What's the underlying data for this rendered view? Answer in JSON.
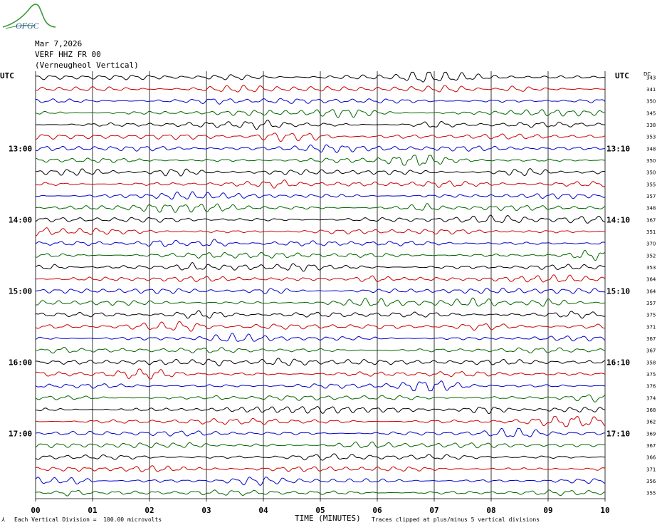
{
  "logo": {
    "text": "OFGC"
  },
  "header": {
    "date": "Mar 7,2026",
    "station": "VERF HHZ FR 00",
    "location": "(Verneugheol Vertical)"
  },
  "axis": {
    "left_label": "UTC",
    "right_label": "UTC",
    "dc_label": "DC",
    "xlabel": "TIME (MINUTES)"
  },
  "footer": {
    "mark": "⅄",
    "scale_note": "Each Vertical Division =  100.00 microvolts",
    "clip_note": "Traces clipped at plus/minus 5 vertical divisions"
  },
  "colors": {
    "cycle": [
      "#000000",
      "#cc0000",
      "#0000cc",
      "#006600"
    ],
    "grid": "#000000"
  },
  "chart_data": {
    "type": "line",
    "title": "",
    "xlabel": "TIME (MINUTES)",
    "xlim": [
      0,
      10
    ],
    "x_ticks": [
      "00",
      "01",
      "02",
      "03",
      "04",
      "05",
      "06",
      "07",
      "08",
      "09",
      "10"
    ],
    "rows": 36,
    "left_time_labels": [
      {
        "row": 6,
        "label": "13:00"
      },
      {
        "row": 12,
        "label": "14:00"
      },
      {
        "row": 18,
        "label": "15:00"
      },
      {
        "row": 24,
        "label": "16:00"
      },
      {
        "row": 30,
        "label": "17:00"
      }
    ],
    "right_time_labels": [
      {
        "row": 6,
        "label": "13:10"
      },
      {
        "row": 12,
        "label": "14:10"
      },
      {
        "row": 18,
        "label": "15:10"
      },
      {
        "row": 24,
        "label": "16:10"
      },
      {
        "row": 30,
        "label": "17:10"
      }
    ],
    "dc_offsets": [
      343,
      341,
      350,
      345,
      338,
      353,
      348,
      350,
      350,
      355,
      357,
      348,
      367,
      351,
      370,
      352,
      353,
      364,
      364,
      357,
      375,
      371,
      367,
      367,
      358,
      375,
      376,
      374,
      368,
      362,
      369,
      367,
      366,
      371,
      356,
      355
    ],
    "clip_divisions": 5,
    "units_per_division": 100.0
  }
}
